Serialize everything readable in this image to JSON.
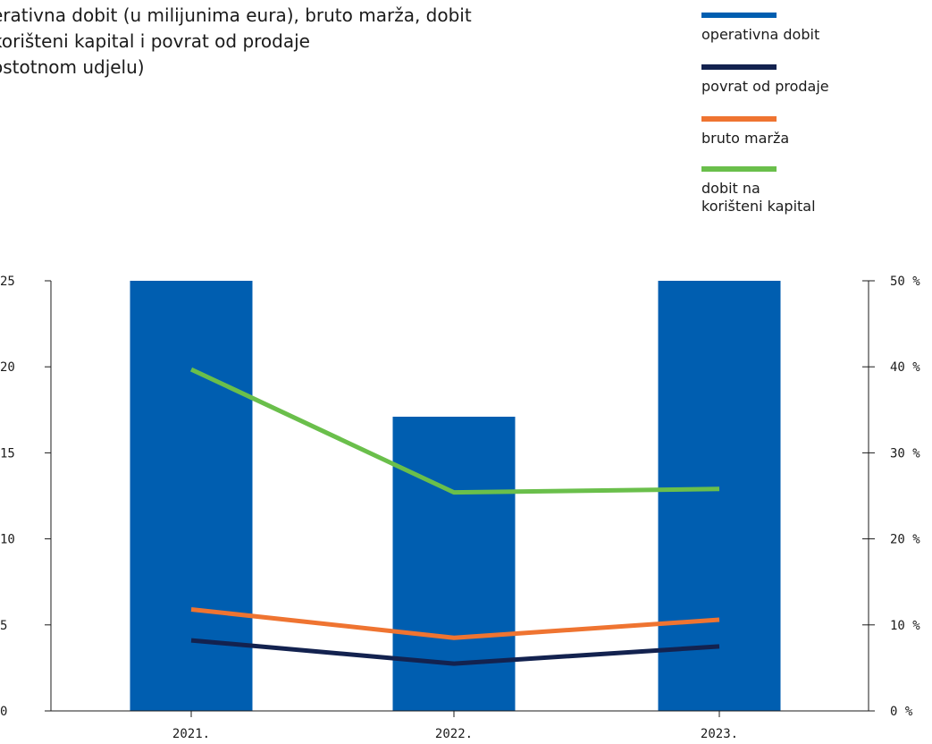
{
  "chart_data": {
    "type": "bar+line",
    "title": "erativna dobit (u milijunima eura), bruto marža, dobit\nkorišteni kapital i povrat od prodaje\nostotnom udjelu)",
    "categories": [
      "2021.",
      "2022.",
      "2023."
    ],
    "left_axis": {
      "range": [
        0,
        25
      ],
      "ticks": [
        "0",
        "5",
        "10",
        "15",
        "20",
        "25"
      ]
    },
    "right_axis": {
      "range": [
        0,
        50
      ],
      "ticks": [
        "0 %",
        "10 %",
        "20 %",
        "30 %",
        "40 %",
        "50 %"
      ]
    },
    "bars": {
      "name": "operativna dobit",
      "axis": "left",
      "color": "#005eb0",
      "values": [
        25,
        17.1,
        25
      ]
    },
    "lines": [
      {
        "name": "povrat od prodaje",
        "axis": "right",
        "color": "#13224f",
        "values": [
          8.2,
          5.5,
          7.5
        ]
      },
      {
        "name": "bruto marža",
        "axis": "right",
        "color": "#ef7431",
        "values": [
          11.8,
          8.5,
          10.6
        ]
      },
      {
        "name": "dobit na\nkorišteni kapital",
        "axis": "right",
        "color": "#6abf4b",
        "values": [
          39.7,
          25.4,
          25.8
        ]
      }
    ],
    "grid": false,
    "legend_position": "top-right"
  }
}
